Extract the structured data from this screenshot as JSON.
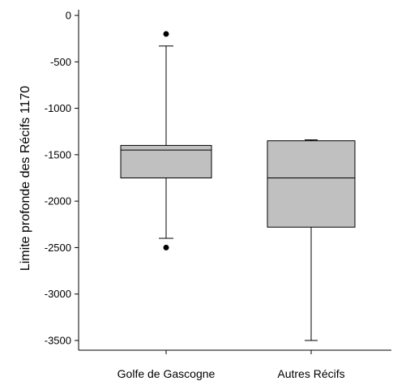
{
  "chart_data": {
    "type": "box",
    "title": "",
    "xlabel": "",
    "ylabel": "Limite profonde des Récifs 1170",
    "ylim": [
      -3600,
      0
    ],
    "yticks": [
      0,
      -500,
      -1000,
      -1500,
      -2000,
      -2500,
      -3000,
      -3500
    ],
    "ytick_labels": [
      "0",
      "-500",
      "-1000",
      "-1500",
      "-2000",
      "-2500",
      "-3000",
      "-3500"
    ],
    "categories": [
      "Golfe de Gascogne",
      "Autres Récifs"
    ],
    "boxes": [
      {
        "category": "Golfe de Gascogne",
        "whisker_low": -2400,
        "q1": -1750,
        "median": -1450,
        "q3": -1400,
        "whisker_high": -330,
        "outliers": [
          -200,
          -2500
        ]
      },
      {
        "category": "Autres Récifs",
        "whisker_low": -3500,
        "q1": -2280,
        "median": -1750,
        "q3": -1350,
        "whisker_high": -1340,
        "outliers": []
      }
    ],
    "box_fill": "#c0c0c0",
    "grid": false,
    "legend": "none"
  }
}
